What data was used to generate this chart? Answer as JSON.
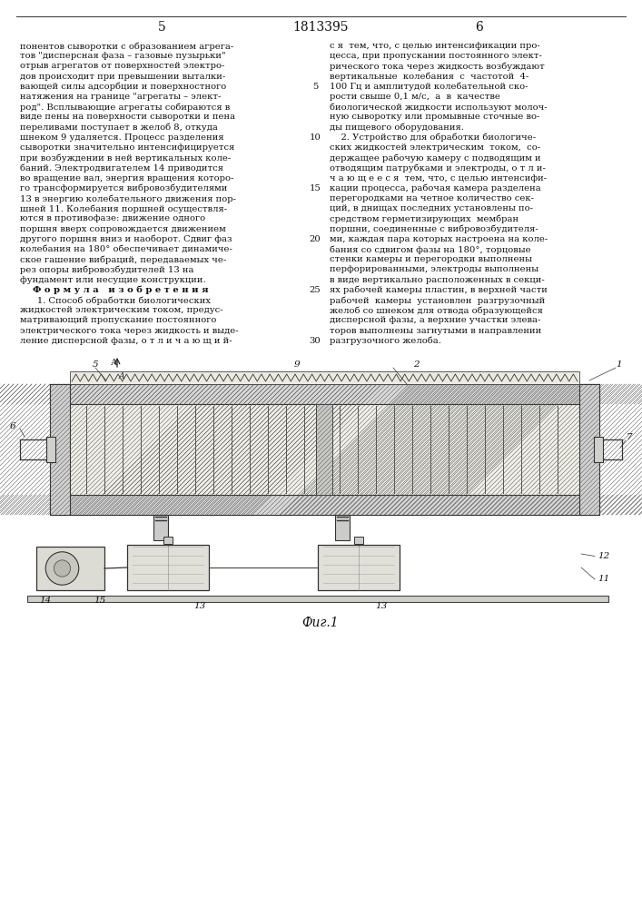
{
  "page_num_left": "5",
  "page_num_center": "1813395",
  "page_num_right": "6",
  "col_left_text": [
    "понентов сыворотки с образованием агрега-",
    "тов \"дисперсная фаза – газовые пузырьки\"",
    "отрыв агрегатов от поверхностей электро-",
    "дов происходит при превышении выталки-",
    "вающей силы адсорбции и поверхностного",
    "натяжения на границе \"агрегаты – элект-",
    "род\". Всплывающие агрегаты собираются в",
    "виде пены на поверхности сыворотки и пена",
    "переливами поступает в желоб 8, откуда",
    "шнеком 9 удаляется. Процесс разделения",
    "сыворотки значительно интенсифицируется",
    "при возбуждении в ней вертикальных коле-",
    "баний. Электродвигателем 14 приводится",
    "во вращение вал, энергия вращения которо-",
    "го трансформируется вибровозбудителями",
    "13 в энергию колебательного движения пор-",
    "шней 11. Колебания поршней осуществля-",
    "ются в противофазе: движение одного",
    "поршня вверх сопровождается движением",
    "другого поршня вниз и наоборот. Сдвиг фаз",
    "колебания на 180° обеспечивает динамиче-",
    "ское гашение вибраций, передаваемых че-",
    "рез опоры вибровозбудителей 13 на",
    "фундамент или несущие конструкции.",
    "    Ф о р м у л а   и з о б р е т е н и я",
    "      1. Способ обработки биологических",
    "жидкостей электрическим током, предус-",
    "матривающий пропускание постоянного",
    "электрического тока через жидкость и выде-",
    "ление дисперсной фазы, о т л и ч а ю щ и й-"
  ],
  "col_right_text": [
    "с я  тем, что, с целью интенсификации про-",
    "цесса, при пропускании постоянного элект-",
    "рического тока через жидкость возбуждают",
    "вертикальные  колебания  с  частотой  4-",
    "100 Гц и амплитудой колебательной ско-",
    "рости свыше 0,1 м/с,  а  в  качестве",
    "биологической жидкости используют молоч-",
    "ную сыворотку или промывные сточные во-",
    "ды пищевого оборудования.",
    "    2. Устройство для обработки биологиче-",
    "ских жидкостей электрическим  током,  со-",
    "держащее рабочую камеру с подводящим и",
    "отводящим патрубками и электроды, о т л и-",
    "ч а ю щ е е с я  тем, что, с целью интенсифи-",
    "кации процесса, рабочая камера разделена",
    "перегородками на четное количество сек-",
    "ций, в днищах последних установлены по-",
    "средством герметизирующих  мембран",
    "поршни, соединенные с вибровозбудителя-",
    "ми, каждая пара которых настроена на коле-",
    "бания со сдвигом фазы на 180°, торцовые",
    "стенки камеры и перегородки выполнены",
    "перфорированными, электроды выполнены",
    "в виде вертикально расположенных в секци-",
    "ях рабочей камеры пластин, в верхней части",
    "рабочей  камеры  установлен  разгрузочный",
    "желоб со шнеком для отвода образующейся",
    "дисперсной фазы, а верхние участки элева-",
    "торов выполнены загнутыми в направлении",
    "разгрузочного желоба."
  ],
  "line_numbers": {
    "4": "5",
    "9": "10",
    "14": "15",
    "19": "20",
    "24": "25",
    "29": "30"
  },
  "fig_caption": "Фиг.1",
  "bg_color": "#ffffff",
  "text_color": "#111111"
}
